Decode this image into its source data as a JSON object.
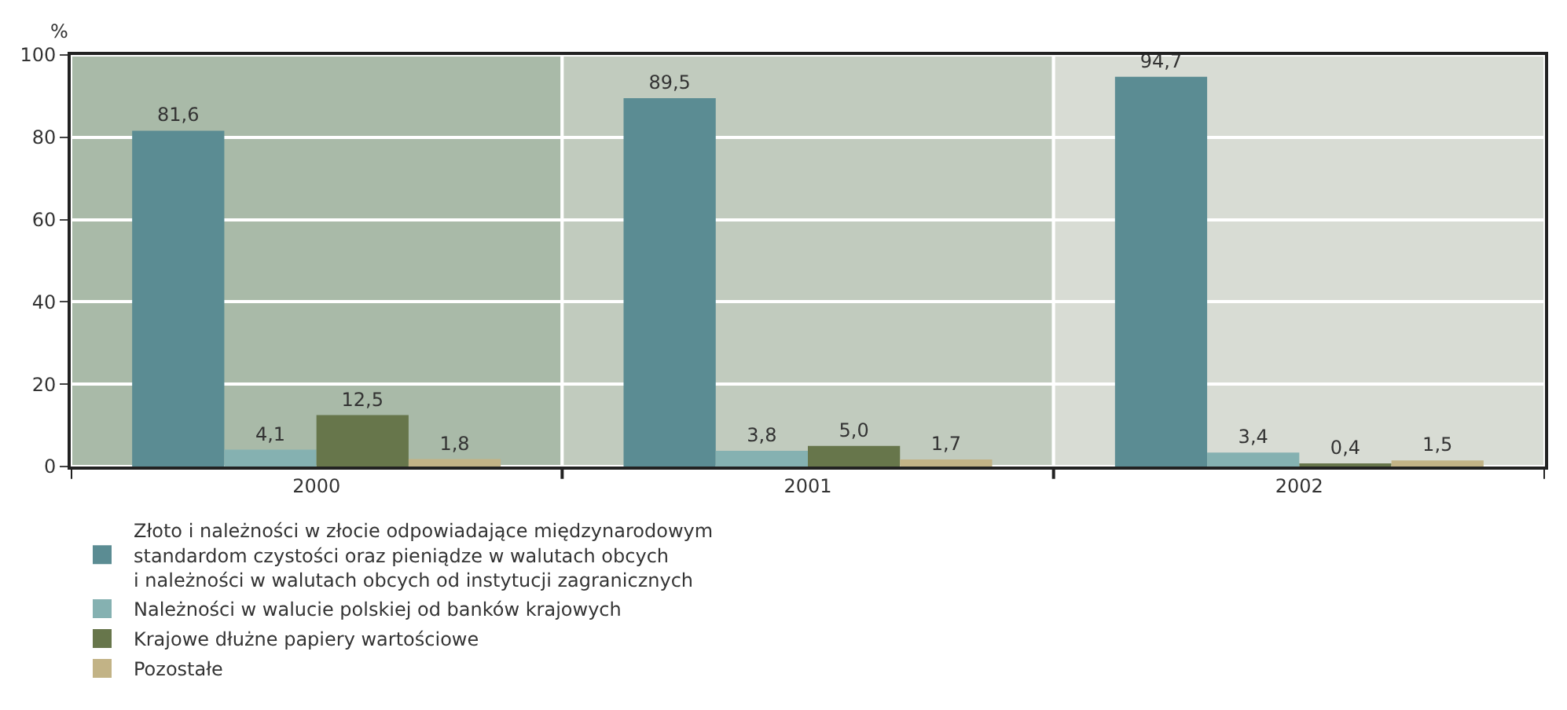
{
  "chart_data": {
    "type": "bar",
    "ylabel": "%",
    "categories": [
      "2000",
      "2001",
      "2002"
    ],
    "series": [
      {
        "name": "Złoto i należności w złocie odpowiadające międzynarodowym\nstandardom czystości oraz pieniądze w walutach obcych\ni należności w walutach obcych od instytucji zagranicznych",
        "color": "#5b8c93",
        "values": [
          81.6,
          89.5,
          94.7
        ],
        "value_labels": [
          "81,6",
          "89,5",
          "94,7"
        ]
      },
      {
        "name": "Należności w walucie polskiej od banków krajowych",
        "color": "#85b1b1",
        "values": [
          4.1,
          3.8,
          3.4
        ],
        "value_labels": [
          "4,1",
          "3,8",
          "3,4"
        ]
      },
      {
        "name": "Krajowe dłużne papiery wartościowe",
        "color": "#67764b",
        "values": [
          12.5,
          5.0,
          0.4
        ],
        "value_labels": [
          "12,5",
          "5,0",
          "0,4"
        ]
      },
      {
        "name": "Pozostałe",
        "color": "#c2b386",
        "values": [
          1.8,
          1.7,
          1.5
        ],
        "value_labels": [
          "1,8",
          "1,7",
          "1,5"
        ]
      }
    ],
    "ylim": [
      0,
      100
    ],
    "yticks": [
      0,
      20,
      40,
      60,
      80,
      100
    ],
    "grid": "y",
    "legend": "bottom",
    "bands": [
      {
        "axis": "x",
        "from": "2000",
        "to": "2000",
        "color": "#a9baa8"
      },
      {
        "axis": "x",
        "from": "2001",
        "to": "2001",
        "color": "#c1cbbe"
      },
      {
        "axis": "x",
        "from": "2002",
        "to": "2002",
        "color": "#d8dcd4"
      }
    ]
  }
}
